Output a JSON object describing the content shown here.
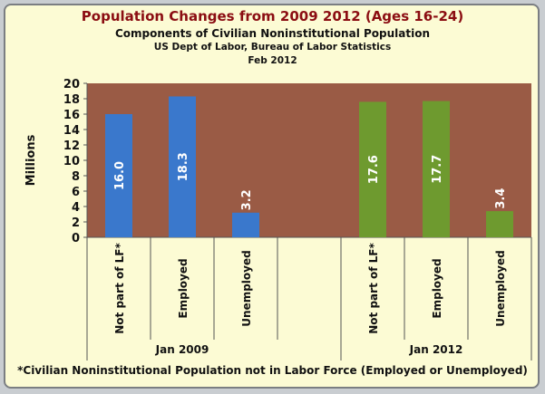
{
  "chart_data": {
    "type": "bar",
    "title": "Population Changes  from 2009 2012 (Ages 16-24)",
    "subtitle": "Components of Civilian Noninstitutional Population",
    "source": "US Dept of Labor, Bureau of Labor Statistics",
    "date": "Feb 2012",
    "ylabel": "Millions",
    "xlabel": "",
    "ylim": [
      0,
      20
    ],
    "yticks": [
      0,
      2,
      4,
      6,
      8,
      10,
      12,
      14,
      16,
      18,
      20
    ],
    "grid": false,
    "groups": [
      {
        "label": "Jan 2009",
        "color": "#3a78cc",
        "categories": [
          "Not part of LF*",
          "Employed",
          "Unemployed"
        ],
        "values": [
          16.0,
          18.3,
          3.2
        ],
        "value_labels": [
          "16.0",
          "18.3",
          "3.2"
        ]
      },
      {
        "label": "Jan 2012",
        "color": "#6e9a2f",
        "categories": [
          "Not part of LF*",
          "Employed",
          "Unemployed"
        ],
        "values": [
          17.6,
          17.7,
          3.4
        ],
        "value_labels": [
          "17.6",
          "17.7",
          "3.4"
        ]
      }
    ],
    "footnote": "*Civilian Noninstitutional Population not in Labor Force (Employed or Unemployed)"
  },
  "colors": {
    "plot_background": "#9a5b45",
    "page_background": "#fcfbd4",
    "title": "#8b0d12"
  }
}
